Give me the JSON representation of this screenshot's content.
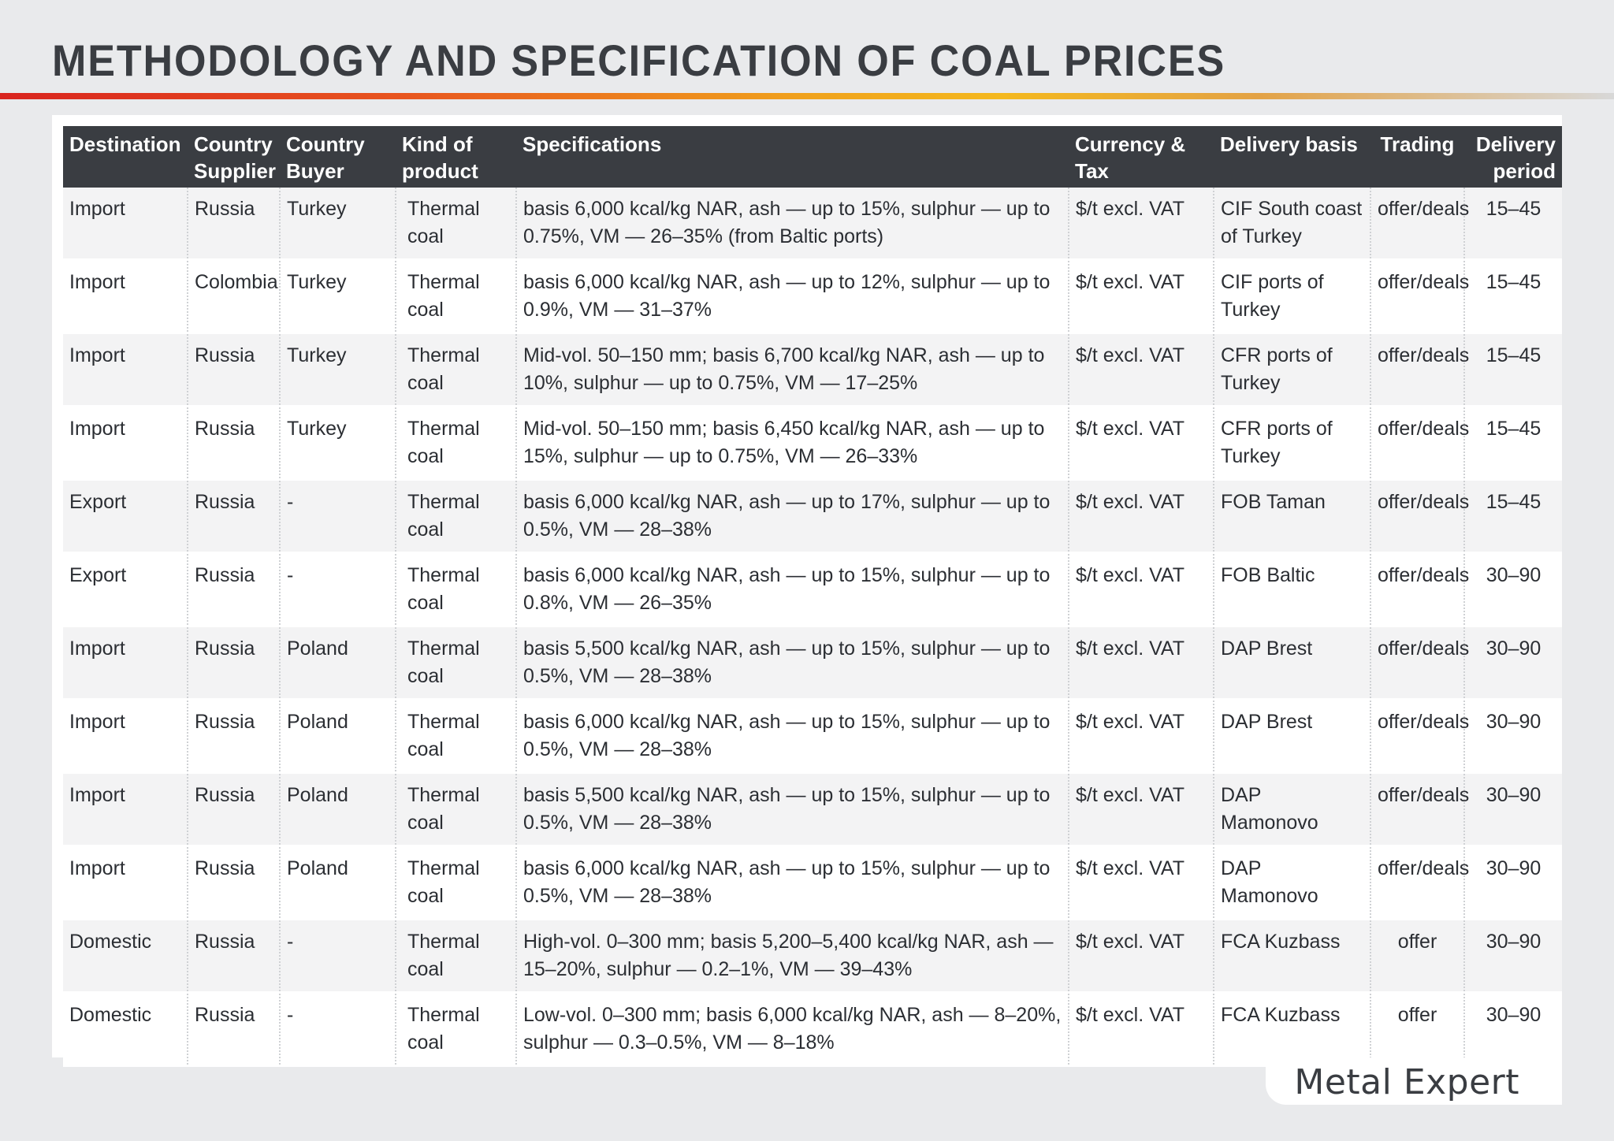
{
  "title": "METHODOLOGY AND SPECIFICATION OF COAL PRICES",
  "brand": "Metal Expert",
  "colors": {
    "header_bg": "#3a3d42",
    "accent_start": "#d9241f",
    "accent_mid": "#f4b81d",
    "row_alt": "#f3f3f4"
  },
  "table": {
    "headers": {
      "destination": "Destination",
      "supplier_1": "Country",
      "supplier_2": "Supplier",
      "buyer_1": "Country",
      "buyer_2": "Buyer",
      "product_1": "Kind of",
      "product_2": "product",
      "specifications": "Specifications",
      "currency": "Currency & Tax",
      "delivery_basis": "Delivery basis",
      "trading": "Trading",
      "period_1": "Delivery",
      "period_2": "period"
    },
    "rows": [
      {
        "destination": "Import",
        "supplier": "Russia",
        "buyer": "Turkey",
        "product": "Thermal coal",
        "spec": "basis 6,000 kcal/kg NAR, ash — up to 15%, sulphur — up to 0.75%, VM — 26–35% (from Baltic ports)",
        "currency": "$/t excl. VAT",
        "basis": "CIF South coast of Turkey",
        "trading": "offer/deals",
        "period": "15–45"
      },
      {
        "destination": "Import",
        "supplier": "Colombia",
        "buyer": "Turkey",
        "product": "Thermal coal",
        "spec": "basis 6,000 kcal/kg NAR, ash — up to 12%, sulphur — up to 0.9%, VM — 31–37%",
        "currency": "$/t excl. VAT",
        "basis": "CIF ports of Turkey",
        "trading": "offer/deals",
        "period": "15–45"
      },
      {
        "destination": "Import",
        "supplier": "Russia",
        "buyer": "Turkey",
        "product": "Thermal coal",
        "spec": "Mid-vol. 50–150 mm; basis 6,700 kcal/kg NAR, ash — up to 10%, sulphur — up to 0.75%, VM — 17–25%",
        "currency": "$/t excl. VAT",
        "basis": "CFR ports of Turkey",
        "trading": "offer/deals",
        "period": "15–45"
      },
      {
        "destination": "Import",
        "supplier": "Russia",
        "buyer": "Turkey",
        "product": "Thermal coal",
        "spec": "Mid-vol. 50–150 mm; basis 6,450 kcal/kg NAR, ash — up to 15%, sulphur — up to 0.75%, VM — 26–33%",
        "currency": "$/t excl. VAT",
        "basis": "CFR ports of Turkey",
        "trading": "offer/deals",
        "period": "15–45"
      },
      {
        "destination": "Export",
        "supplier": "Russia",
        "buyer": "-",
        "product": "Thermal coal",
        "spec": "basis 6,000 kcal/kg NAR, ash — up to 17%, sulphur — up to 0.5%, VM — 28–38%",
        "currency": "$/t excl. VAT",
        "basis": "FOB Taman",
        "trading": "offer/deals",
        "period": "15–45"
      },
      {
        "destination": "Export",
        "supplier": "Russia",
        "buyer": "-",
        "product": "Thermal coal",
        "spec": "basis 6,000 kcal/kg NAR, ash — up to 15%, sulphur — up to 0.8%, VM — 26–35%",
        "currency": "$/t excl. VAT",
        "basis": "FOB Baltic",
        "trading": "offer/deals",
        "period": "30–90"
      },
      {
        "destination": "Import",
        "supplier": "Russia",
        "buyer": "Poland",
        "product": "Thermal coal",
        "spec": "basis 5,500 kcal/kg NAR, ash — up to 15%, sulphur — up to 0.5%, VM — 28–38%",
        "currency": "$/t excl. VAT",
        "basis": "DAP Brest",
        "trading": "offer/deals",
        "period": "30–90"
      },
      {
        "destination": "Import",
        "supplier": "Russia",
        "buyer": "Poland",
        "product": "Thermal coal",
        "spec": "basis 6,000 kcal/kg NAR, ash — up to 15%, sulphur — up to 0.5%, VM — 28–38%",
        "currency": "$/t excl. VAT",
        "basis": "DAP Brest",
        "trading": "offer/deals",
        "period": "30–90"
      },
      {
        "destination": "Import",
        "supplier": "Russia",
        "buyer": "Poland",
        "product": "Thermal coal",
        "spec": "basis 5,500 kcal/kg NAR, ash — up to 15%, sulphur — up to 0.5%, VM — 28–38%",
        "currency": "$/t excl. VAT",
        "basis": "DAP Mamonovo",
        "trading": "offer/deals",
        "period": "30–90"
      },
      {
        "destination": "Import",
        "supplier": "Russia",
        "buyer": "Poland",
        "product": "Thermal coal",
        "spec": "basis 6,000 kcal/kg NAR, ash — up to 15%, sulphur — up to 0.5%, VM — 28–38%",
        "currency": "$/t excl. VAT",
        "basis": "DAP Mamonovo",
        "trading": "offer/deals",
        "period": "30–90"
      },
      {
        "destination": "Domestic",
        "supplier": "Russia",
        "buyer": "-",
        "product": "Thermal coal",
        "spec": "High-vol. 0–300 mm; basis 5,200–5,400 kcal/kg NAR, ash — 15–20%, sulphur — 0.2–1%, VM — 39–43%",
        "currency": "$/t excl. VAT",
        "basis": "FCA Kuzbass",
        "trading": "offer",
        "period": "30–90"
      },
      {
        "destination": "Domestic",
        "supplier": "Russia",
        "buyer": "-",
        "product": "Thermal coal",
        "spec": "Low-vol. 0–300 mm; basis 6,000 kcal/kg NAR, ash — 8–20%, sulphur — 0.3–0.5%, VM — 8–18%",
        "currency": "$/t excl. VAT",
        "basis": "FCA Kuzbass",
        "trading": "offer",
        "period": "30–90"
      }
    ]
  }
}
